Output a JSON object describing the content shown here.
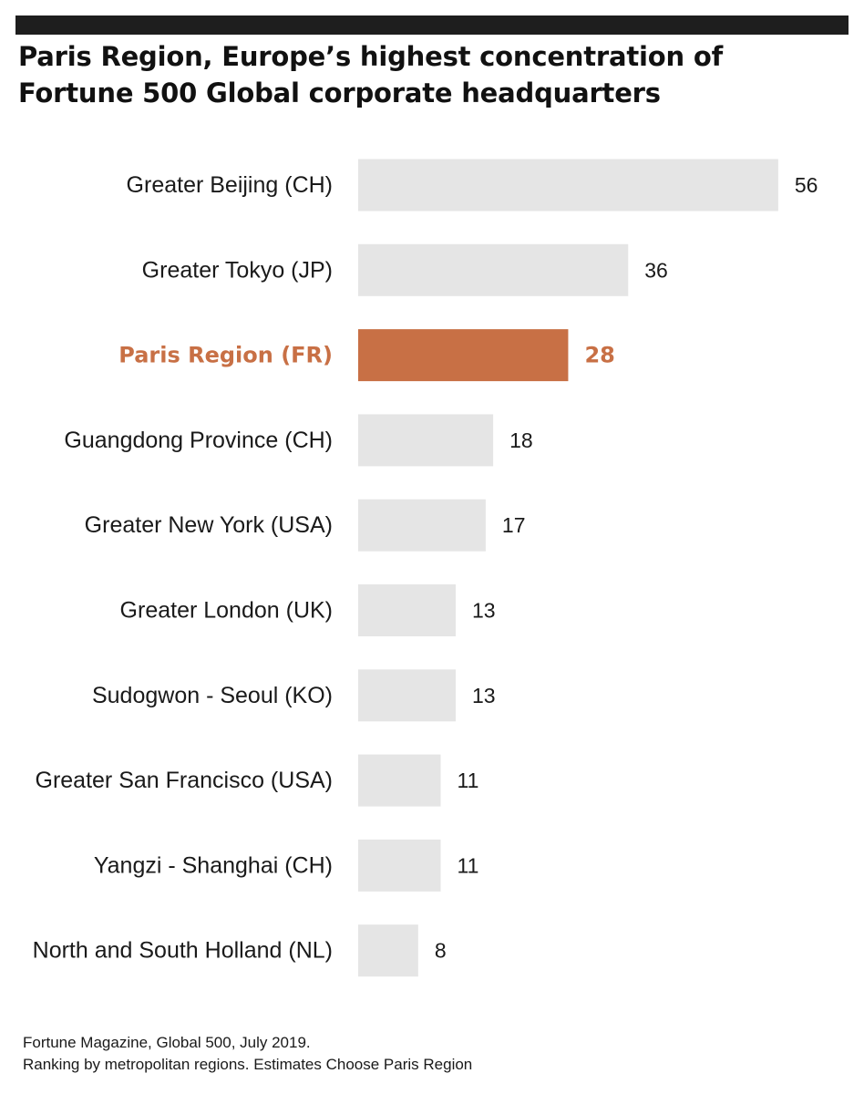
{
  "header": {
    "title": "Paris Region, Europe’s highest concentration of Fortune 500 Global corporate headquarters"
  },
  "chart_data": {
    "type": "bar",
    "orientation": "horizontal",
    "title": "Paris Region, Europe’s highest concentration of Fortune 500 Global corporate headquarters",
    "categories": [
      "Greater Beijing (CH)",
      "Greater Tokyo (JP)",
      "Paris Region (FR)",
      "Guangdong Province (CH)",
      "Greater New York (USA)",
      "Greater London (UK)",
      "Sudogwon - Seoul (KO)",
      "Greater San Francisco (USA)",
      "Yangzi - Shanghai (CH)",
      "North and South Holland (NL)"
    ],
    "values": [
      56,
      36,
      28,
      18,
      17,
      13,
      13,
      11,
      11,
      8
    ],
    "value_labels": [
      "56",
      "36",
      "28",
      "18",
      "17",
      "13",
      "13",
      "11",
      "11",
      "8"
    ],
    "highlight_index": 2,
    "colors": {
      "bar": "#e5e5e5",
      "highlight": "#c87045",
      "text": "#1a1a1a"
    },
    "grid": false,
    "legend": "none"
  },
  "source": {
    "line1": "Fortune Magazine, Global 500, July 2019.",
    "line2": "Ranking by metropolitan regions. Estimates Choose Paris Region"
  }
}
